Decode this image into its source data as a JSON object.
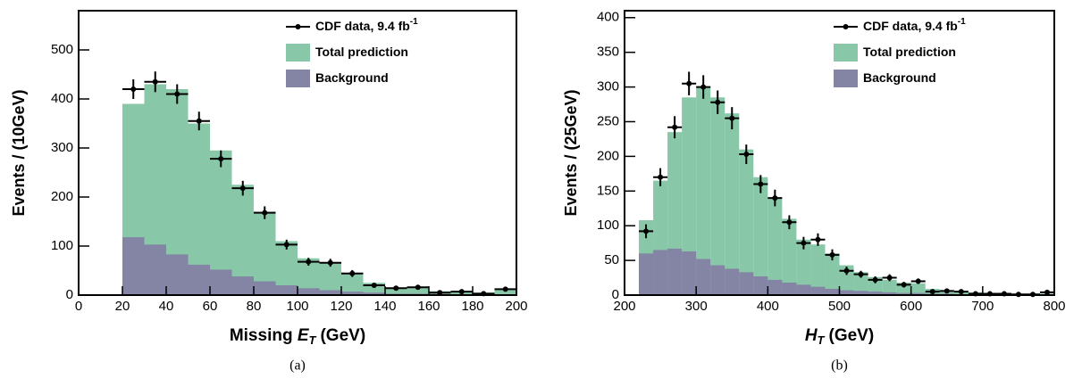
{
  "chart_data": [
    {
      "type": "histogram",
      "caption": "(a)",
      "x_label": {
        "text": "Missing ",
        "symbol": "E",
        "subscript": "T",
        "unit": "(GeV)"
      },
      "y_label": "Events / (10GeV)",
      "bins": [
        20,
        30,
        40,
        50,
        60,
        70,
        80,
        90,
        100,
        110,
        120,
        130,
        140,
        150,
        160,
        170,
        180,
        190,
        200
      ],
      "series": [
        {
          "name": "Total prediction",
          "color": "#88c8a8",
          "values": [
            390,
            430,
            420,
            350,
            295,
            225,
            170,
            110,
            75,
            65,
            45,
            25,
            15,
            15,
            8,
            8,
            5,
            12
          ]
        },
        {
          "name": "Background",
          "color": "#8484a4",
          "values": [
            118,
            103,
            83,
            62,
            52,
            38,
            28,
            20,
            14,
            10,
            7,
            5,
            3,
            3,
            2,
            2,
            1,
            1
          ]
        },
        {
          "name": "CDF data, 9.4  fb",
          "name_superscript": "-1",
          "color": "#000000",
          "values": [
            420,
            435,
            410,
            355,
            278,
            218,
            168,
            103,
            68,
            66,
            44,
            20,
            14,
            16,
            5,
            7,
            3,
            12
          ],
          "errors": [
            20,
            21,
            20,
            19,
            17,
            15,
            13,
            10,
            8,
            8,
            7,
            4,
            4,
            4,
            2,
            3,
            2,
            3
          ]
        }
      ],
      "xlim": [
        0,
        200
      ],
      "xticks": [
        0,
        20,
        40,
        60,
        80,
        100,
        120,
        140,
        160,
        180,
        200
      ],
      "ylim": [
        0,
        580
      ],
      "yticks": [
        0,
        100,
        200,
        300,
        400,
        500
      ]
    },
    {
      "type": "histogram",
      "caption": "(b)",
      "x_label": {
        "symbol": "H",
        "subscript": "T",
        "unit": "(GeV)"
      },
      "y_label": "Events / (25GeV)",
      "bins": [
        220,
        240,
        260,
        280,
        300,
        320,
        340,
        360,
        380,
        400,
        420,
        440,
        460,
        480,
        500,
        520,
        540,
        560,
        580,
        600,
        620,
        640,
        660,
        680,
        700,
        720,
        740,
        760,
        780,
        800
      ],
      "series": [
        {
          "name": "Total prediction",
          "color": "#88c8a8",
          "values": [
            108,
            165,
            235,
            285,
            300,
            285,
            262,
            210,
            170,
            140,
            110,
            80,
            73,
            60,
            43,
            33,
            26,
            22,
            18,
            17,
            9,
            7,
            6,
            4,
            3,
            3,
            2,
            2,
            2
          ]
        },
        {
          "name": "Background",
          "color": "#8484a4",
          "values": [
            60,
            65,
            67,
            63,
            52,
            43,
            38,
            33,
            27,
            22,
            18,
            15,
            12,
            9,
            7,
            6,
            5,
            4,
            3,
            3,
            2,
            2,
            1,
            1,
            1,
            1,
            1,
            1,
            1
          ]
        },
        {
          "name": "CDF data, 9.4  fb",
          "name_superscript": "-1",
          "color": "#000000",
          "values": [
            92,
            170,
            242,
            305,
            300,
            278,
            255,
            203,
            160,
            140,
            105,
            75,
            80,
            58,
            35,
            30,
            22,
            25,
            15,
            20,
            5,
            6,
            5,
            2,
            2,
            2,
            1,
            1,
            4
          ],
          "errors": [
            10,
            13,
            16,
            17,
            17,
            17,
            16,
            14,
            13,
            12,
            10,
            9,
            9,
            8,
            6,
            5,
            5,
            5,
            4,
            4,
            2,
            2,
            2,
            1,
            1,
            1,
            1,
            1,
            2
          ]
        }
      ],
      "xlim": [
        200,
        800
      ],
      "xticks": [
        200,
        300,
        400,
        500,
        600,
        700,
        800
      ],
      "ylim": [
        0,
        410
      ],
      "yticks": [
        0,
        50,
        100,
        150,
        200,
        250,
        300,
        350,
        400
      ]
    }
  ]
}
